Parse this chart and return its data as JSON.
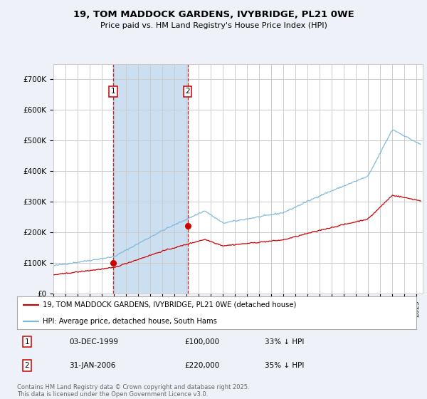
{
  "title": "19, TOM MADDOCK GARDENS, IVYBRIDGE, PL21 0WE",
  "subtitle": "Price paid vs. HM Land Registry's House Price Index (HPI)",
  "hpi_color": "#7ab8d9",
  "price_color": "#cc0000",
  "purchase1": {
    "date_num": 1999.92,
    "price": 100000,
    "label": "1",
    "date_str": "03-DEC-1999",
    "pct": "33% ↓ HPI"
  },
  "purchase2": {
    "date_num": 2006.08,
    "price": 220000,
    "label": "2",
    "date_str": "31-JAN-2006",
    "pct": "35% ↓ HPI"
  },
  "ylim": [
    0,
    750000
  ],
  "yticks": [
    0,
    100000,
    200000,
    300000,
    400000,
    500000,
    600000,
    700000
  ],
  "ytick_labels": [
    "£0",
    "£100K",
    "£200K",
    "£300K",
    "£400K",
    "£500K",
    "£600K",
    "£700K"
  ],
  "legend1": "19, TOM MADDOCK GARDENS, IVYBRIDGE, PL21 0WE (detached house)",
  "legend2": "HPI: Average price, detached house, South Hams",
  "footnote": "Contains HM Land Registry data © Crown copyright and database right 2025.\nThis data is licensed under the Open Government Licence v3.0.",
  "bg_color": "#eef2f8",
  "plot_bg": "#ffffff",
  "grid_color": "#cccccc",
  "shade_color": "#ccdff0",
  "xlim_min": 1995.0,
  "xlim_max": 2025.5
}
